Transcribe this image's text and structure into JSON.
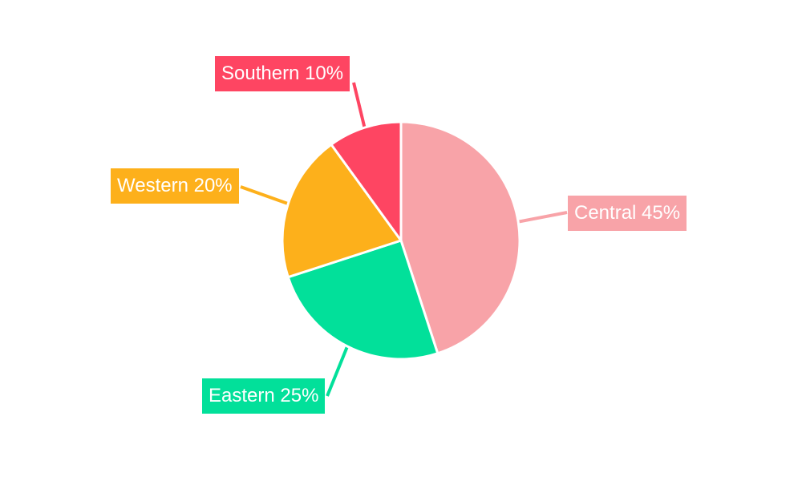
{
  "chart_data": {
    "type": "pie",
    "slices": [
      {
        "label": "Central",
        "value": 45,
        "percent_label": "45%",
        "color": "#f8a3a8"
      },
      {
        "label": "Eastern",
        "value": 25,
        "percent_label": "25%",
        "color": "#02e09a"
      },
      {
        "label": "Western",
        "value": 20,
        "percent_label": "20%",
        "color": "#fdb01b"
      },
      {
        "label": "Southern",
        "value": 10,
        "percent_label": "10%",
        "color": "#fe4562"
      }
    ],
    "start": "12 o'clock",
    "direction": "clockwise",
    "legend": "none",
    "data_labels": "outside callouts with leader lines"
  }
}
